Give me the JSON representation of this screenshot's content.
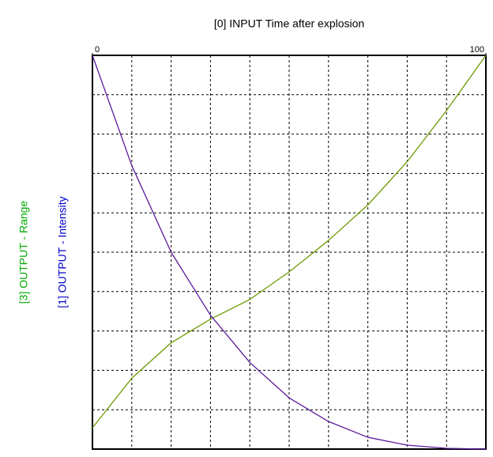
{
  "chart_data": {
    "type": "line",
    "x_label": "[0] INPUT Time after explosion",
    "x": [
      0,
      10,
      20,
      30,
      40,
      50,
      60,
      70,
      80,
      90,
      100
    ],
    "series": [
      {
        "name": "[3] OUTPUT - Range",
        "color": "#6b9a00",
        "label_color": "#00aa00",
        "values": [
          5.4,
          18,
          27,
          33,
          38,
          45,
          53,
          62,
          73,
          86,
          100
        ]
      },
      {
        "name": "[1] OUTPUT - Intensity",
        "color": "#5a1a9a",
        "label_color": "#0000cc",
        "values": [
          100,
          72,
          50,
          34,
          22,
          13,
          7,
          3,
          1,
          0.2,
          0
        ]
      }
    ],
    "xlim": [
      0,
      100
    ],
    "xticks": [
      0,
      100
    ],
    "ylim": [
      0,
      100
    ],
    "grid": true,
    "grid_lines": 10
  }
}
